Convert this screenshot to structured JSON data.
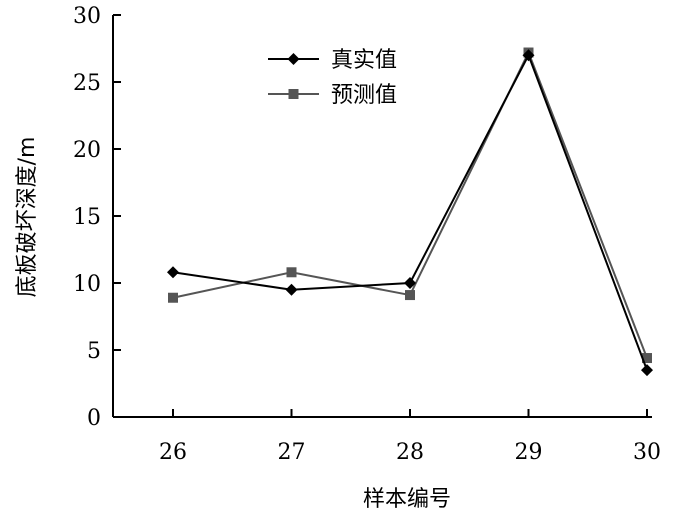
{
  "chart_data": {
    "type": "line",
    "x": [
      26,
      27,
      28,
      29,
      30
    ],
    "x_tick_labels": [
      "26",
      "27",
      "28",
      "29",
      "30"
    ],
    "y_tick_labels": [
      "0",
      "5",
      "10",
      "15",
      "20",
      "25",
      "30"
    ],
    "xlabel": "样本编号",
    "ylabel": "底板破坏深度/m",
    "xlim": [
      25.5,
      30
    ],
    "ylim": [
      0,
      30
    ],
    "grid": false,
    "legend_position": "top-center",
    "series": [
      {
        "name": "真实值",
        "marker": "diamond",
        "color": "#000000",
        "values": [
          10.8,
          9.5,
          10.0,
          27.0,
          3.5
        ]
      },
      {
        "name": "预测值",
        "marker": "square",
        "color": "#555555",
        "values": [
          8.9,
          10.8,
          9.1,
          27.2,
          4.4
        ]
      }
    ]
  }
}
